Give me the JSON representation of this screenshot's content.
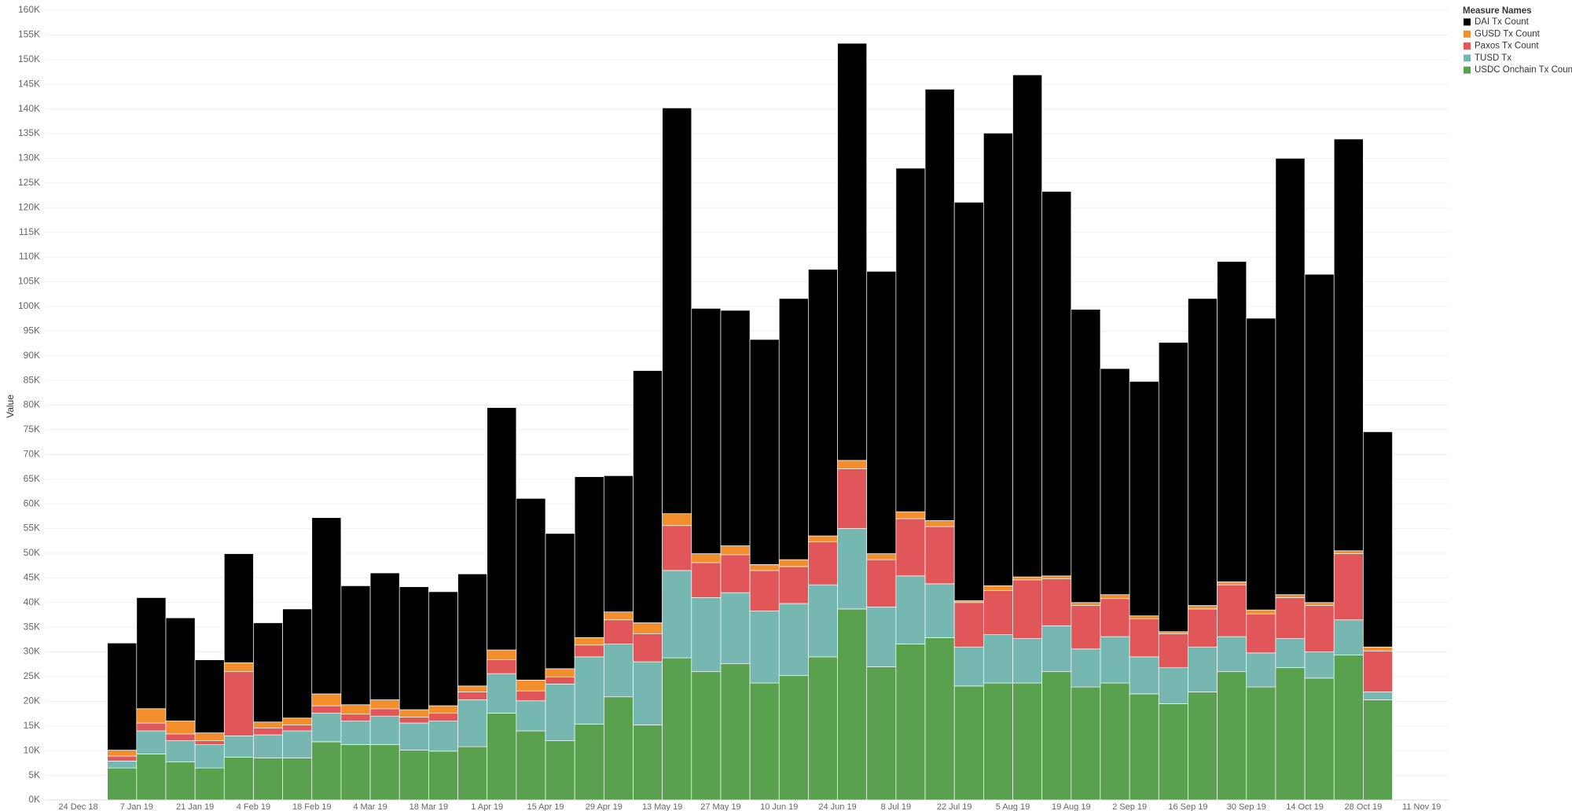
{
  "chart_data": {
    "type": "stacked-bar",
    "y_label": "Value",
    "legend_title": "Measure Names",
    "legend_position": "top-right",
    "grid": true,
    "ylim": [
      0,
      160000
    ],
    "yticks": [
      {
        "value": 0,
        "label": "0K"
      },
      {
        "value": 5000,
        "label": "5K"
      },
      {
        "value": 10000,
        "label": "10K"
      },
      {
        "value": 15000,
        "label": "15K"
      },
      {
        "value": 20000,
        "label": "20K"
      },
      {
        "value": 25000,
        "label": "25K"
      },
      {
        "value": 30000,
        "label": "30K"
      },
      {
        "value": 35000,
        "label": "35K"
      },
      {
        "value": 40000,
        "label": "40K"
      },
      {
        "value": 45000,
        "label": "45K"
      },
      {
        "value": 50000,
        "label": "50K"
      },
      {
        "value": 55000,
        "label": "55K"
      },
      {
        "value": 60000,
        "label": "60K"
      },
      {
        "value": 65000,
        "label": "65K"
      },
      {
        "value": 70000,
        "label": "70K"
      },
      {
        "value": 75000,
        "label": "75K"
      },
      {
        "value": 80000,
        "label": "80K"
      },
      {
        "value": 85000,
        "label": "85K"
      },
      {
        "value": 90000,
        "label": "90K"
      },
      {
        "value": 95000,
        "label": "95K"
      },
      {
        "value": 100000,
        "label": "100K"
      },
      {
        "value": 105000,
        "label": "105K"
      },
      {
        "value": 110000,
        "label": "110K"
      },
      {
        "value": 115000,
        "label": "115K"
      },
      {
        "value": 120000,
        "label": "120K"
      },
      {
        "value": 125000,
        "label": "125K"
      },
      {
        "value": 130000,
        "label": "130K"
      },
      {
        "value": 135000,
        "label": "135K"
      },
      {
        "value": 140000,
        "label": "140K"
      },
      {
        "value": 145000,
        "label": "145K"
      },
      {
        "value": 150000,
        "label": "150K"
      },
      {
        "value": 155000,
        "label": "155K"
      },
      {
        "value": 160000,
        "label": "160K"
      }
    ],
    "xticks": [
      "24 Dec 18",
      "7 Jan 19",
      "21 Jan 19",
      "4 Feb 19",
      "18 Feb 19",
      "4 Mar 19",
      "18 Mar 19",
      "1 Apr 19",
      "15 Apr 19",
      "29 Apr 19",
      "13 May 19",
      "27 May 19",
      "10 Jun 19",
      "24 Jun 19",
      "8 Jul 19",
      "22 Jul 19",
      "5 Aug 19",
      "19 Aug 19",
      "2 Sep 19",
      "16 Sep 19",
      "30 Sep 19",
      "14 Oct 19",
      "28 Oct 19",
      "11 Nov 19"
    ],
    "series": [
      {
        "name": "DAI Tx Count",
        "color": "#000000",
        "values": [
          21700,
          22500,
          20900,
          14800,
          22100,
          20100,
          22100,
          35700,
          24100,
          25700,
          24900,
          23100,
          22700,
          49100,
          36800,
          27400,
          32600,
          27600,
          51100,
          82200,
          49700,
          47700,
          45600,
          52900,
          54000,
          84500,
          57200,
          69600,
          87400,
          80700,
          91700,
          101700,
          77900,
          59400,
          45800,
          47500,
          58600,
          62200,
          64900,
          59100,
          88400,
          66500,
          83400,
          43600
        ]
      },
      {
        "name": "GUSD Tx Count",
        "color": "#f28e2b",
        "values": [
          1200,
          2900,
          2600,
          1600,
          1800,
          1200,
          1400,
          2400,
          1900,
          1800,
          1500,
          1500,
          1200,
          2000,
          2200,
          1700,
          1500,
          1600,
          2200,
          2400,
          1800,
          1800,
          1200,
          1400,
          1200,
          1700,
          1200,
          1400,
          1200,
          400,
          1000,
          600,
          600,
          600,
          800,
          600,
          400,
          700,
          600,
          800,
          600,
          600,
          600,
          800
        ]
      },
      {
        "name": "Paxos Tx Count",
        "color": "#e15759",
        "values": [
          1000,
          1600,
          1400,
          800,
          13000,
          1400,
          1200,
          1500,
          1400,
          1500,
          1200,
          1600,
          1600,
          2800,
          2000,
          1400,
          2400,
          4900,
          5700,
          9100,
          7100,
          7700,
          8200,
          7500,
          8700,
          12100,
          9600,
          11600,
          11600,
          9000,
          8900,
          11900,
          9500,
          8800,
          7700,
          7700,
          6900,
          7700,
          10500,
          7900,
          8300,
          9400,
          13400,
          8300
        ]
      },
      {
        "name": "TUSD Tx",
        "color": "#76b7b2",
        "values": [
          1400,
          4700,
          4300,
          4700,
          4300,
          4700,
          5500,
          5800,
          4800,
          5800,
          5500,
          6100,
          9500,
          8000,
          6100,
          11500,
          13600,
          10700,
          12800,
          17700,
          15000,
          14400,
          14600,
          14600,
          14600,
          16300,
          12100,
          13800,
          10900,
          7900,
          9800,
          9000,
          9300,
          7700,
          9400,
          7500,
          7300,
          9100,
          7100,
          6900,
          5900,
          5300,
          7100,
          1600
        ]
      },
      {
        "name": "USDC Onchain Tx Count",
        "color": "#59a14f",
        "values": [
          6500,
          9300,
          7700,
          6500,
          8700,
          8500,
          8500,
          11800,
          11200,
          11200,
          10100,
          9900,
          10800,
          17600,
          14000,
          12000,
          15400,
          20900,
          15200,
          28800,
          26000,
          27600,
          23700,
          25200,
          29000,
          38700,
          27000,
          31600,
          32900,
          23100,
          23700,
          23700,
          26000,
          22900,
          23700,
          21500,
          19500,
          21900,
          26000,
          22900,
          26800,
          24700,
          29400,
          20300
        ]
      }
    ]
  }
}
